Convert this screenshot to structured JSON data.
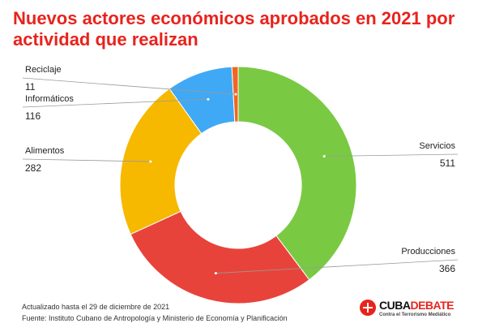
{
  "chart_data": {
    "type": "pie",
    "title": "Nuevos actores económicos aprobados en 2021 por actividad que realizan",
    "categories": [
      "Servicios",
      "Producciones",
      "Alimentos",
      "Informáticos",
      "Reciclaje"
    ],
    "values": [
      511,
      366,
      282,
      116,
      11
    ],
    "colors": [
      "#7ac943",
      "#e8433a",
      "#f7b800",
      "#3fa9f5",
      "#f26522"
    ],
    "donut": true
  },
  "footer": {
    "updated": "Actualizado hasta el 29 de diciembre de 2021",
    "source": "Fuente: Instituto Cubano de Antropología y Ministerio de Economía y Planificación"
  },
  "brand": {
    "name_part1": "CUBA",
    "name_part2": "DEBATE",
    "tagline": "Contra el Terrorismo Mediático"
  }
}
